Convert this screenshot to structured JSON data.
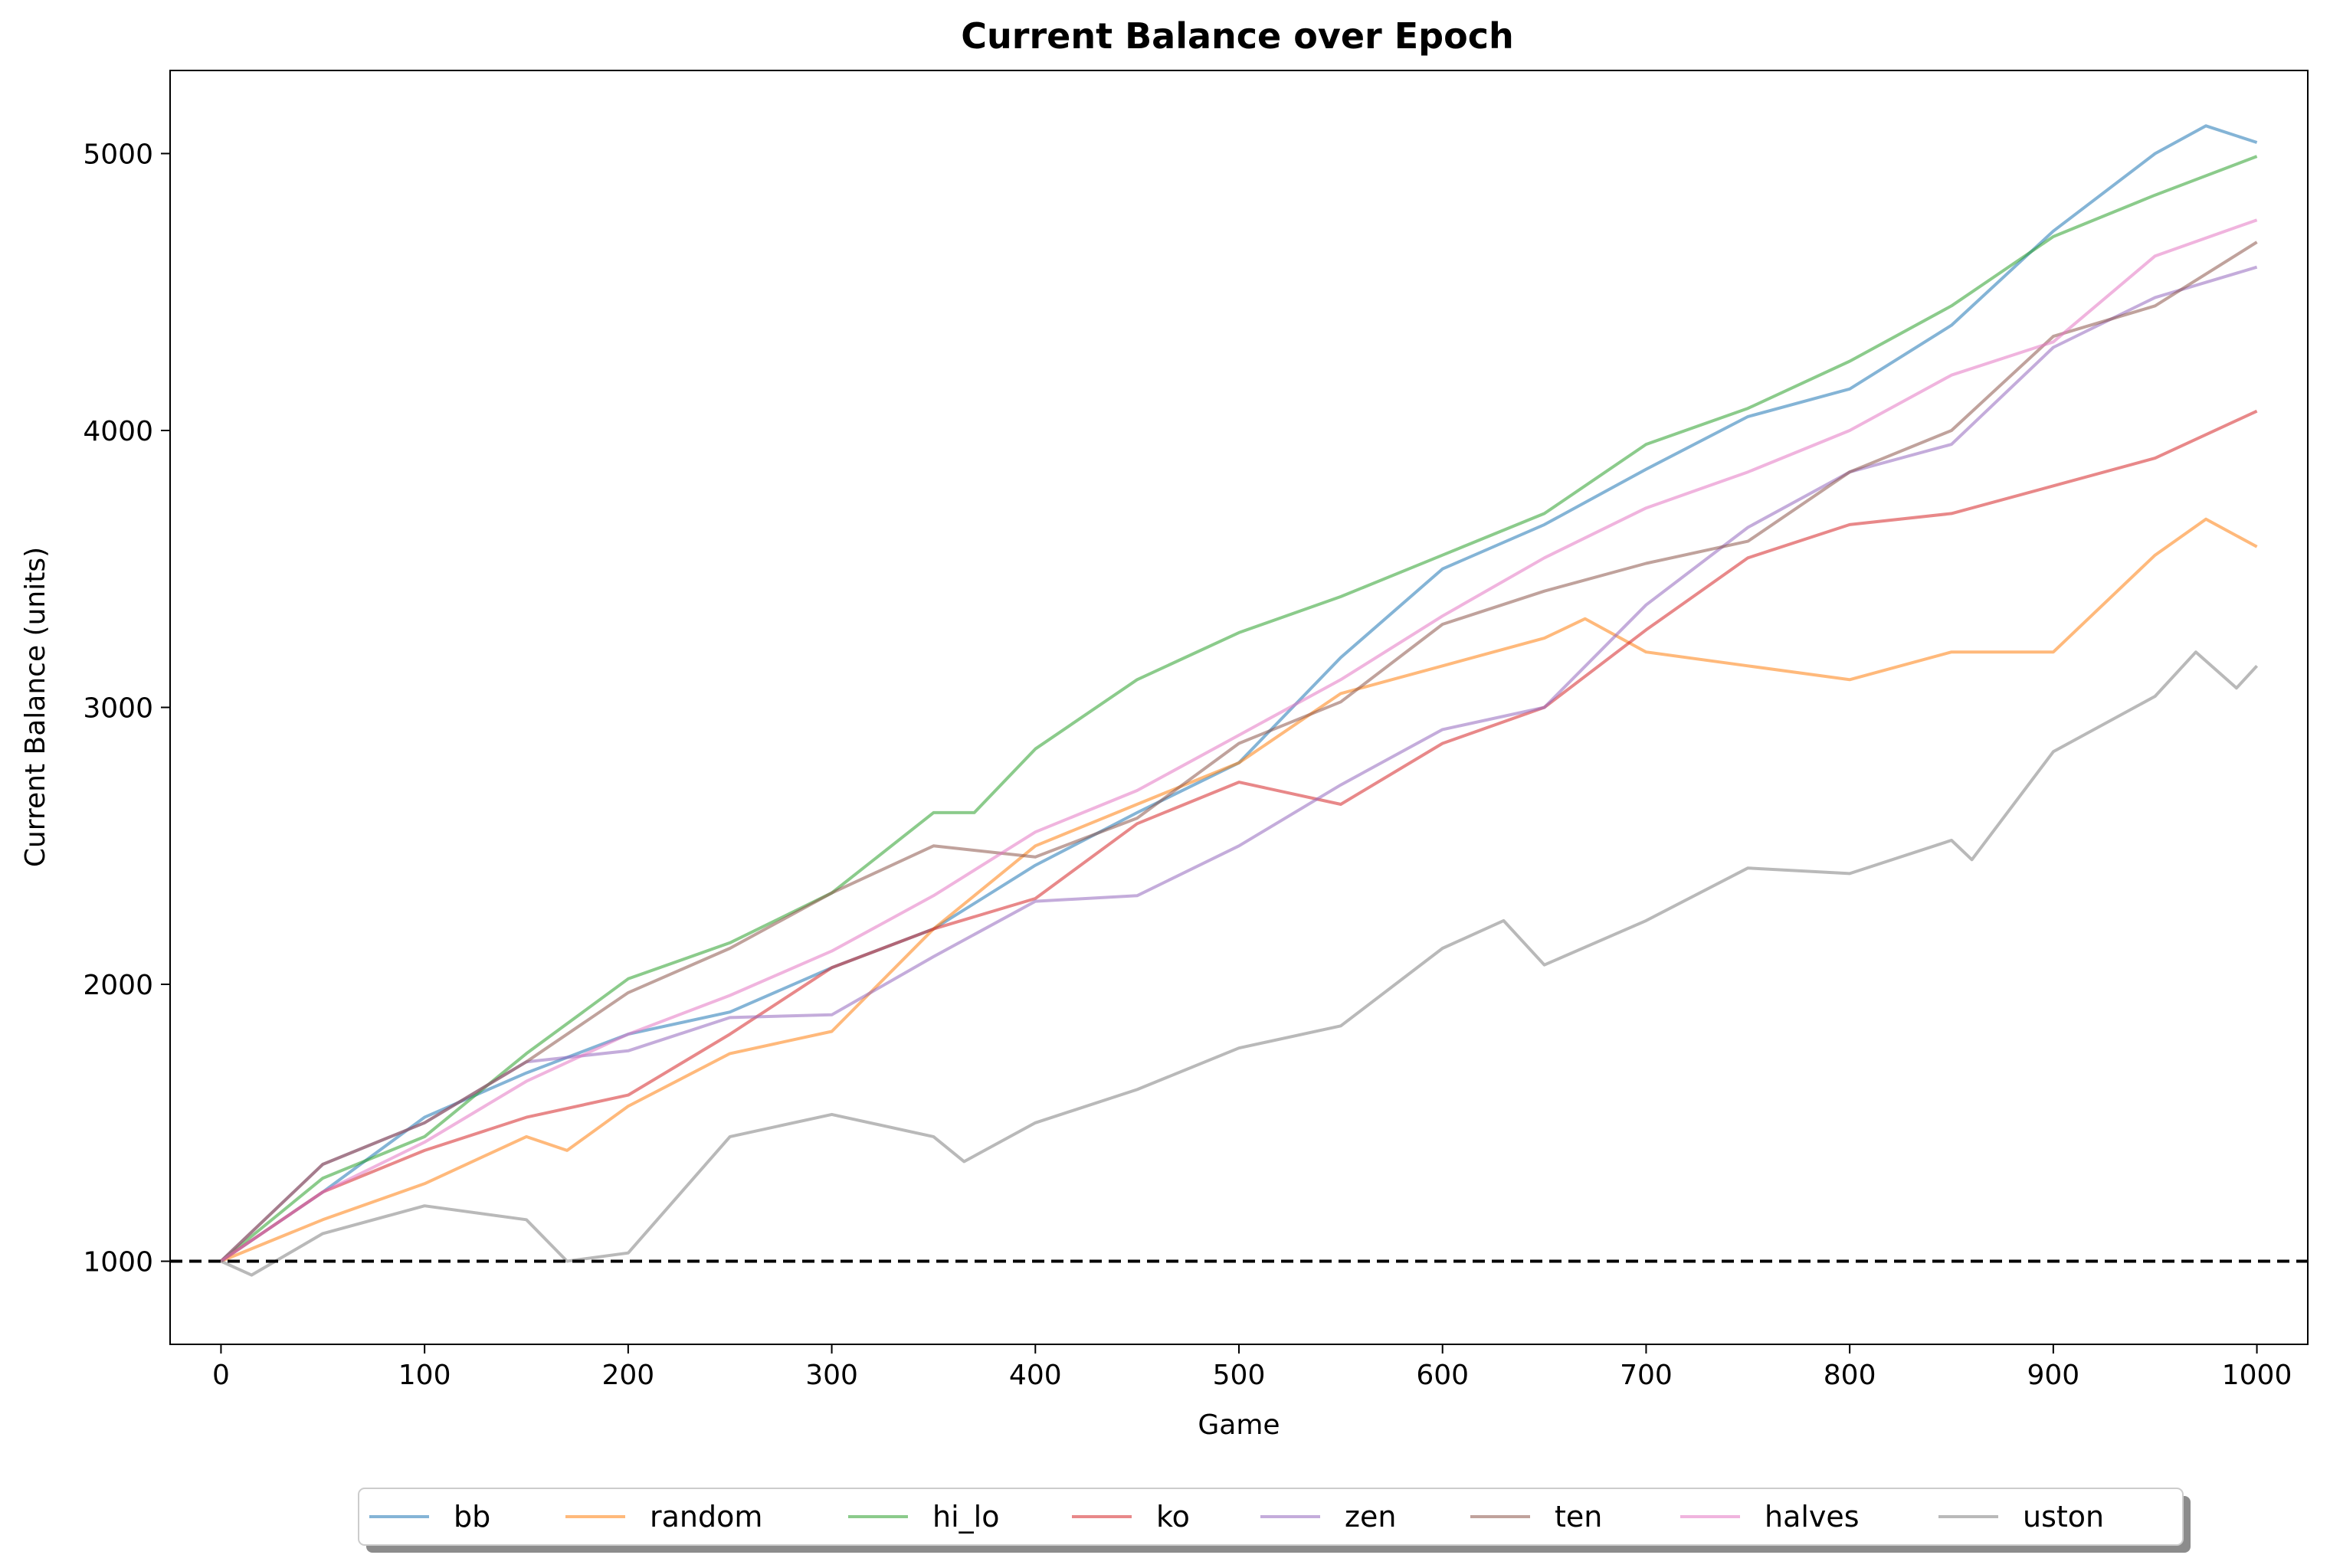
{
  "chart_data": {
    "type": "line",
    "title": "Current Balance over Epoch",
    "xlabel": "Game",
    "ylabel": "Current Balance (units)",
    "xlim": [
      -25,
      1025
    ],
    "ylim": [
      700,
      5300
    ],
    "xticks": [
      0,
      100,
      200,
      300,
      400,
      500,
      600,
      700,
      800,
      900,
      1000
    ],
    "yticks": [
      1000,
      2000,
      3000,
      4000,
      5000
    ],
    "reference_line": {
      "y": 1000,
      "style": "dashed",
      "color": "#000000"
    },
    "grid": false,
    "legend_position": "bottom-center",
    "series": [
      {
        "name": "bb",
        "color": "#1f77b4",
        "x": [
          0,
          50,
          100,
          150,
          200,
          250,
          300,
          350,
          400,
          450,
          500,
          550,
          600,
          650,
          700,
          750,
          800,
          850,
          900,
          950,
          975,
          1000
        ],
        "y": [
          1000,
          1250,
          1520,
          1680,
          1820,
          1900,
          2060,
          2200,
          2430,
          2620,
          2800,
          3180,
          3500,
          3660,
          3860,
          4050,
          4150,
          4380,
          4720,
          5000,
          5100,
          5040
        ]
      },
      {
        "name": "random",
        "color": "#ff7f0e",
        "x": [
          0,
          50,
          100,
          150,
          170,
          200,
          250,
          300,
          350,
          400,
          450,
          500,
          550,
          600,
          650,
          670,
          700,
          750,
          800,
          850,
          900,
          950,
          975,
          1000
        ],
        "y": [
          1000,
          1150,
          1280,
          1450,
          1400,
          1560,
          1750,
          1830,
          2200,
          2500,
          2650,
          2800,
          3050,
          3150,
          3250,
          3320,
          3200,
          3150,
          3100,
          3200,
          3200,
          3550,
          3680,
          3580
        ]
      },
      {
        "name": "hi_lo",
        "color": "#2ca02c",
        "x": [
          0,
          50,
          100,
          150,
          200,
          250,
          300,
          350,
          370,
          400,
          450,
          500,
          550,
          600,
          650,
          700,
          750,
          800,
          850,
          900,
          950,
          1000
        ],
        "y": [
          1000,
          1300,
          1450,
          1750,
          2020,
          2150,
          2330,
          2620,
          2620,
          2850,
          3100,
          3270,
          3400,
          3550,
          3700,
          3950,
          4080,
          4250,
          4450,
          4700,
          4850,
          4990
        ]
      },
      {
        "name": "ko",
        "color": "#d62728",
        "x": [
          0,
          50,
          100,
          150,
          200,
          250,
          300,
          350,
          400,
          450,
          500,
          550,
          600,
          650,
          700,
          750,
          800,
          850,
          900,
          950,
          1000
        ],
        "y": [
          1000,
          1250,
          1400,
          1520,
          1600,
          1820,
          2060,
          2200,
          2310,
          2580,
          2730,
          2650,
          2870,
          3000,
          3280,
          3540,
          3660,
          3700,
          3800,
          3900,
          4070
        ]
      },
      {
        "name": "zen",
        "color": "#9467bd",
        "x": [
          0,
          50,
          100,
          150,
          200,
          250,
          300,
          350,
          400,
          450,
          500,
          550,
          600,
          650,
          700,
          750,
          800,
          850,
          900,
          950,
          1000
        ],
        "y": [
          1000,
          1350,
          1500,
          1720,
          1760,
          1880,
          1890,
          2100,
          2300,
          2320,
          2500,
          2720,
          2920,
          3000,
          3370,
          3650,
          3850,
          3950,
          4300,
          4480,
          4590
        ]
      },
      {
        "name": "ten",
        "color": "#8c564b",
        "x": [
          0,
          50,
          100,
          150,
          200,
          250,
          300,
          350,
          400,
          450,
          500,
          550,
          600,
          650,
          700,
          750,
          800,
          850,
          900,
          950,
          1000
        ],
        "y": [
          1000,
          1350,
          1500,
          1720,
          1970,
          2130,
          2330,
          2500,
          2460,
          2600,
          2870,
          3020,
          3300,
          3420,
          3520,
          3600,
          3850,
          4000,
          4340,
          4450,
          4680
        ]
      },
      {
        "name": "halves",
        "color": "#e377c2",
        "x": [
          0,
          50,
          100,
          150,
          200,
          250,
          300,
          350,
          400,
          450,
          500,
          550,
          600,
          650,
          700,
          750,
          800,
          850,
          900,
          950,
          1000
        ],
        "y": [
          1000,
          1250,
          1430,
          1650,
          1820,
          1960,
          2120,
          2320,
          2550,
          2700,
          2900,
          3100,
          3330,
          3540,
          3720,
          3850,
          4000,
          4200,
          4320,
          4630,
          4760
        ]
      },
      {
        "name": "uston",
        "color": "#7f7f7f",
        "x": [
          0,
          15,
          50,
          100,
          150,
          170,
          200,
          250,
          300,
          350,
          365,
          400,
          450,
          500,
          550,
          600,
          630,
          650,
          700,
          750,
          800,
          850,
          860,
          900,
          950,
          970,
          990,
          1000
        ],
        "y": [
          1000,
          950,
          1100,
          1200,
          1150,
          1000,
          1030,
          1450,
          1530,
          1450,
          1360,
          1500,
          1620,
          1770,
          1850,
          2130,
          2230,
          2070,
          2230,
          2420,
          2400,
          2520,
          2450,
          2840,
          3040,
          3200,
          3070,
          3150
        ]
      }
    ]
  }
}
